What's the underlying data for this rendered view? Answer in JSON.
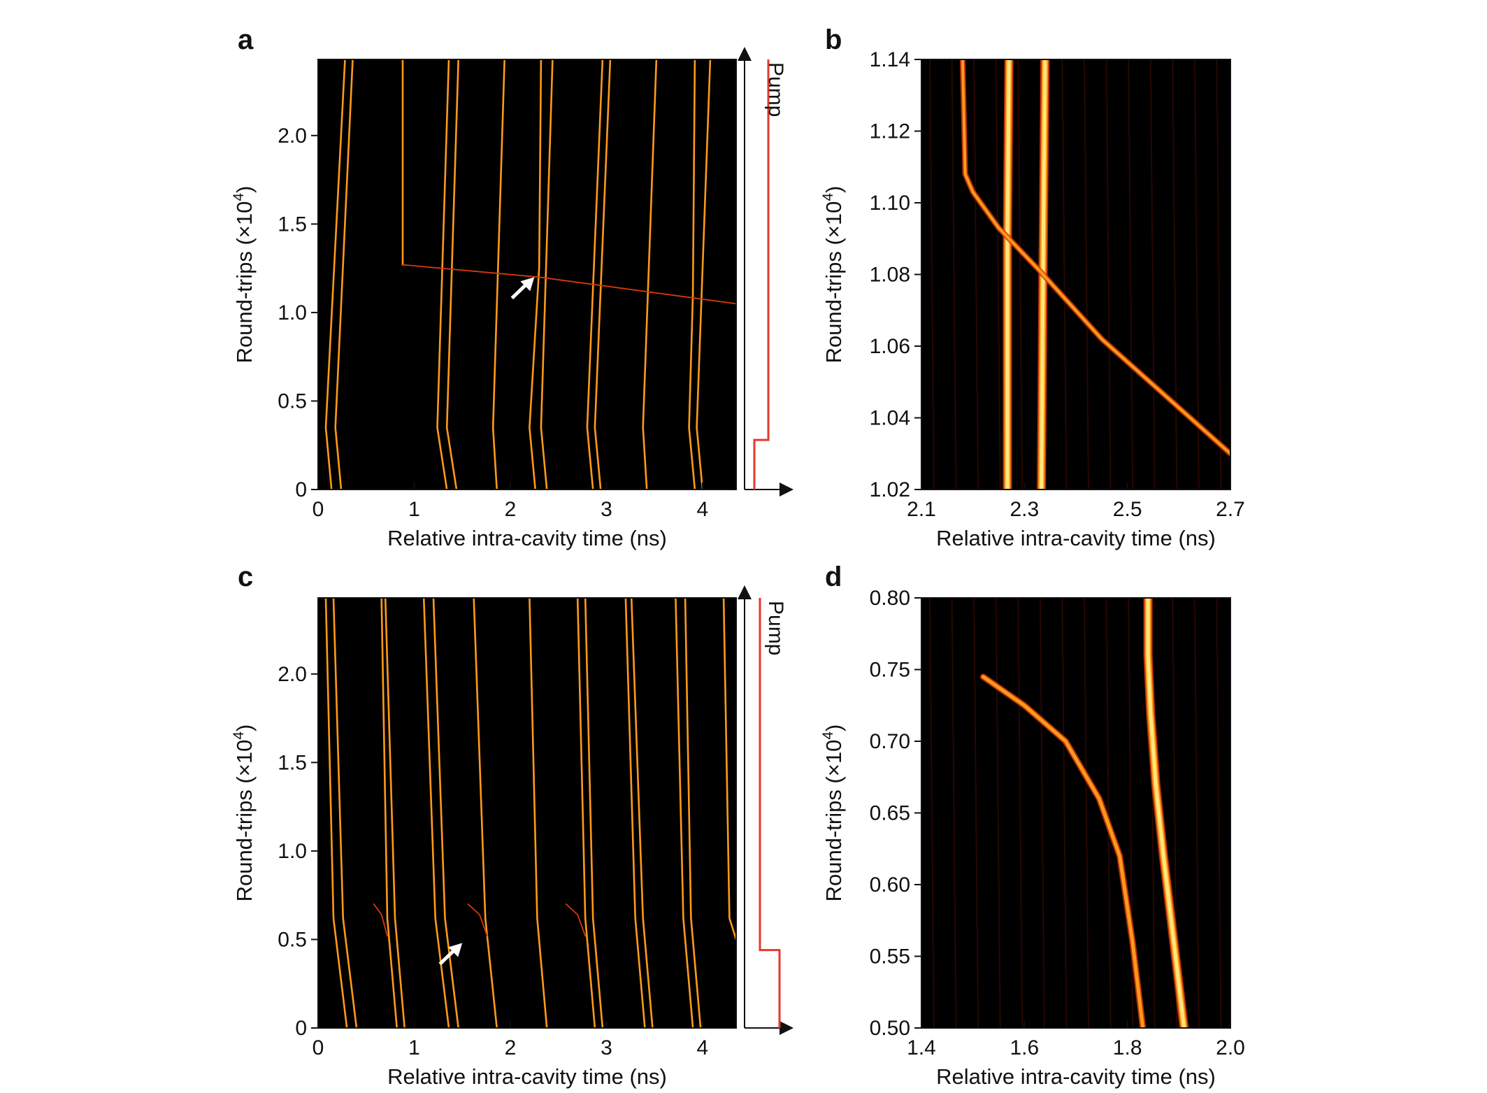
{
  "colors": {
    "background": "#000000",
    "trace_bright": "#ffe77a",
    "trace_mid": "#ff9a1a",
    "trace_dim": "#d43a0a",
    "pump": "#e33a2a",
    "axis": "#111111"
  },
  "chart_data": [
    {
      "id": "a",
      "panel_letter": "a",
      "type": "heatmap",
      "xlabel": "Relative intra-cavity time (ns)",
      "ylabel_main": "Round-trips (×10",
      "ylabel_exp": "4",
      "ylabel_tail": ")",
      "xlim": [
        0,
        4.35
      ],
      "ylim": [
        0,
        2.43
      ],
      "xticks": [
        0,
        1,
        2,
        3,
        4
      ],
      "xtick_labels": [
        "0",
        "1",
        "2",
        "3",
        "4"
      ],
      "yticks": [
        0,
        0.5,
        1.0,
        1.5,
        2.0
      ],
      "ytick_labels": [
        "0",
        "0.5",
        "1.0",
        "1.5",
        "2.0"
      ],
      "pump_label": "Pump",
      "pump_profile": [
        [
          0,
          0.02
        ],
        [
          0.28,
          0.02
        ],
        [
          0.28,
          0.12
        ],
        [
          2.43,
          0.12
        ]
      ],
      "annotation": {
        "type": "arrow",
        "x": 2.25,
        "y": 1.2,
        "direction": "up-right"
      },
      "traces": [
        {
          "points": [
            [
              0.14,
              0
            ],
            [
              0.08,
              0.35
            ],
            [
              0.28,
              2.43
            ]
          ],
          "intensity": "mid"
        },
        {
          "points": [
            [
              0.24,
              0
            ],
            [
              0.18,
              0.35
            ],
            [
              0.36,
              2.43
            ]
          ],
          "intensity": "mid"
        },
        {
          "points": [
            [
              0.88,
              1.27
            ],
            [
              0.88,
              2.43
            ]
          ],
          "intensity": "mid"
        },
        {
          "points": [
            [
              1.34,
              0
            ],
            [
              1.24,
              0.35
            ],
            [
              1.36,
              2.43
            ]
          ],
          "intensity": "mid"
        },
        {
          "points": [
            [
              1.44,
              0
            ],
            [
              1.34,
              0.35
            ],
            [
              1.46,
              2.43
            ]
          ],
          "intensity": "mid"
        },
        {
          "points": [
            [
              1.86,
              0
            ],
            [
              1.82,
              0.35
            ],
            [
              1.94,
              2.43
            ]
          ],
          "intensity": "mid"
        },
        {
          "points": [
            [
              2.26,
              0
            ],
            [
              2.2,
              0.35
            ],
            [
              2.3,
              1.25
            ],
            [
              2.32,
              2.43
            ]
          ],
          "intensity": "mid"
        },
        {
          "points": [
            [
              2.38,
              0
            ],
            [
              2.32,
              0.35
            ],
            [
              2.44,
              2.43
            ]
          ],
          "intensity": "mid"
        },
        {
          "points": [
            [
              2.86,
              0
            ],
            [
              2.8,
              0.35
            ],
            [
              2.96,
              2.43
            ]
          ],
          "intensity": "mid"
        },
        {
          "points": [
            [
              2.94,
              0
            ],
            [
              2.88,
              0.35
            ],
            [
              3.04,
              2.43
            ]
          ],
          "intensity": "mid"
        },
        {
          "points": [
            [
              3.42,
              0
            ],
            [
              3.38,
              0.35
            ],
            [
              3.52,
              2.43
            ]
          ],
          "intensity": "mid"
        },
        {
          "points": [
            [
              3.92,
              0
            ],
            [
              3.86,
              0.35
            ],
            [
              3.9,
              1.1
            ],
            [
              3.92,
              2.43
            ]
          ],
          "intensity": "mid"
        },
        {
          "points": [
            [
              4.0,
              0
            ],
            [
              3.94,
              0.35
            ],
            [
              4.08,
              2.43
            ]
          ],
          "intensity": "mid"
        },
        {
          "points": [
            [
              0.88,
              1.27
            ],
            [
              2.3,
              1.2
            ],
            [
              4.35,
              1.05
            ]
          ],
          "intensity": "dim"
        }
      ]
    },
    {
      "id": "b",
      "panel_letter": "b",
      "type": "heatmap",
      "xlabel": "Relative intra-cavity time (ns)",
      "ylabel_main": "Round-trips (×10",
      "ylabel_exp": "4",
      "ylabel_tail": ")",
      "xlim": [
        2.1,
        2.7
      ],
      "ylim": [
        1.02,
        1.14
      ],
      "xticks": [
        2.1,
        2.3,
        2.5,
        2.7
      ],
      "xtick_labels": [
        "2.1",
        "2.3",
        "2.5",
        "2.7"
      ],
      "yticks": [
        1.02,
        1.04,
        1.06,
        1.08,
        1.1,
        1.12,
        1.14
      ],
      "ytick_labels": [
        "1.02",
        "1.04",
        "1.06",
        "1.08",
        "1.10",
        "1.12",
        "1.14"
      ],
      "traces": [
        {
          "points": [
            [
              2.267,
              1.02
            ],
            [
              2.267,
              1.09
            ],
            [
              2.27,
              1.14
            ]
          ],
          "intensity": "bright",
          "width": 7
        },
        {
          "points": [
            [
              2.333,
              1.02
            ],
            [
              2.336,
              1.08
            ],
            [
              2.34,
              1.14
            ]
          ],
          "intensity": "bright",
          "width": 7
        },
        {
          "points": [
            [
              2.7,
              1.03
            ],
            [
              2.45,
              1.062
            ],
            [
              2.33,
              1.081
            ],
            [
              2.25,
              1.093
            ],
            [
              2.2,
              1.103
            ],
            [
              2.185,
              1.108
            ],
            [
              2.18,
              1.14
            ]
          ],
          "intensity": "mixed",
          "width": 5
        }
      ]
    },
    {
      "id": "c",
      "panel_letter": "c",
      "type": "heatmap",
      "xlabel": "Relative intra-cavity time (ns)",
      "ylabel_main": "Round-trips (×10",
      "ylabel_exp": "4",
      "ylabel_tail": ")",
      "xlim": [
        0,
        4.35
      ],
      "ylim": [
        0,
        2.43
      ],
      "xticks": [
        0,
        1,
        2,
        3,
        4
      ],
      "xtick_labels": [
        "0",
        "1",
        "2",
        "3",
        "4"
      ],
      "yticks": [
        0,
        0.5,
        1.0,
        1.5,
        2.0
      ],
      "ytick_labels": [
        "0",
        "0.5",
        "1.0",
        "1.5",
        "2.0"
      ],
      "pump_label": "Pump",
      "pump_profile": [
        [
          0,
          0.2
        ],
        [
          0.44,
          0.2
        ],
        [
          0.44,
          0.06
        ],
        [
          2.43,
          0.06
        ]
      ],
      "annotation": {
        "type": "arrow",
        "x": 1.5,
        "y": 0.48,
        "direction": "up-right"
      },
      "traces": [
        {
          "points": [
            [
              0.3,
              0
            ],
            [
              0.16,
              0.62
            ],
            [
              0.08,
              2.43
            ]
          ],
          "intensity": "mid"
        },
        {
          "points": [
            [
              0.4,
              0
            ],
            [
              0.26,
              0.62
            ],
            [
              0.16,
              2.43
            ]
          ],
          "intensity": "mid"
        },
        {
          "points": [
            [
              0.82,
              0
            ],
            [
              0.72,
              0.62
            ],
            [
              0.66,
              2.43
            ]
          ],
          "intensity": "mid"
        },
        {
          "points": [
            [
              0.9,
              0
            ],
            [
              0.8,
              0.62
            ],
            [
              0.7,
              2.43
            ]
          ],
          "intensity": "mid"
        },
        {
          "points": [
            [
              1.36,
              0
            ],
            [
              1.22,
              0.62
            ],
            [
              1.1,
              2.43
            ]
          ],
          "intensity": "mid"
        },
        {
          "points": [
            [
              1.46,
              0
            ],
            [
              1.32,
              0.62
            ],
            [
              1.2,
              2.43
            ]
          ],
          "intensity": "mid"
        },
        {
          "points": [
            [
              1.86,
              0
            ],
            [
              1.74,
              0.62
            ],
            [
              1.62,
              2.43
            ]
          ],
          "intensity": "mid"
        },
        {
          "points": [
            [
              2.38,
              0
            ],
            [
              2.28,
              0.62
            ],
            [
              2.2,
              2.43
            ]
          ],
          "intensity": "mid"
        },
        {
          "points": [
            [
              2.88,
              0
            ],
            [
              2.78,
              0.62
            ],
            [
              2.7,
              2.43
            ]
          ],
          "intensity": "mid"
        },
        {
          "points": [
            [
              2.96,
              0
            ],
            [
              2.86,
              0.62
            ],
            [
              2.78,
              2.43
            ]
          ],
          "intensity": "mid"
        },
        {
          "points": [
            [
              3.4,
              0
            ],
            [
              3.3,
              0.62
            ],
            [
              3.2,
              2.43
            ]
          ],
          "intensity": "mid"
        },
        {
          "points": [
            [
              3.48,
              0
            ],
            [
              3.38,
              0.62
            ],
            [
              3.26,
              2.43
            ]
          ],
          "intensity": "mid"
        },
        {
          "points": [
            [
              3.9,
              0
            ],
            [
              3.8,
              0.62
            ],
            [
              3.72,
              2.43
            ]
          ],
          "intensity": "mid"
        },
        {
          "points": [
            [
              3.98,
              0
            ],
            [
              3.88,
              0.62
            ],
            [
              3.82,
              2.43
            ]
          ],
          "intensity": "mid"
        },
        {
          "points": [
            [
              4.35,
              0.5
            ],
            [
              4.28,
              0.62
            ],
            [
              4.22,
              2.43
            ]
          ],
          "intensity": "mid"
        },
        {
          "points": [
            [
              0.72,
              0.52
            ],
            [
              0.66,
              0.64
            ],
            [
              0.58,
              0.7
            ]
          ],
          "intensity": "dim"
        },
        {
          "points": [
            [
              1.76,
              0.52
            ],
            [
              1.68,
              0.64
            ],
            [
              1.56,
              0.7
            ]
          ],
          "intensity": "dim"
        },
        {
          "points": [
            [
              2.78,
              0.52
            ],
            [
              2.7,
              0.64
            ],
            [
              2.58,
              0.7
            ]
          ],
          "intensity": "dim"
        }
      ]
    },
    {
      "id": "d",
      "panel_letter": "d",
      "type": "heatmap",
      "xlabel": "Relative intra-cavity time (ns)",
      "ylabel_main": "Round-trips (×10",
      "ylabel_exp": "4",
      "ylabel_tail": ")",
      "xlim": [
        1.4,
        2.0
      ],
      "ylim": [
        0.5,
        0.8
      ],
      "xticks": [
        1.4,
        1.6,
        1.8,
        2.0
      ],
      "xtick_labels": [
        "1.4",
        "1.6",
        "1.8",
        "2.0"
      ],
      "yticks": [
        0.5,
        0.55,
        0.6,
        0.65,
        0.7,
        0.75,
        0.8
      ],
      "ytick_labels": [
        "0.50",
        "0.55",
        "0.60",
        "0.65",
        "0.70",
        "0.75",
        "0.80"
      ],
      "traces": [
        {
          "points": [
            [
              1.91,
              0.5
            ],
            [
              1.89,
              0.56
            ],
            [
              1.87,
              0.62
            ],
            [
              1.855,
              0.67
            ],
            [
              1.845,
              0.72
            ],
            [
              1.84,
              0.76
            ],
            [
              1.84,
              0.8
            ]
          ],
          "intensity": "bright",
          "width": 7
        },
        {
          "points": [
            [
              1.83,
              0.5
            ],
            [
              1.81,
              0.56
            ],
            [
              1.785,
              0.62
            ],
            [
              1.745,
              0.66
            ],
            [
              1.68,
              0.7
            ],
            [
              1.6,
              0.725
            ],
            [
              1.52,
              0.745
            ]
          ],
          "intensity": "mixed",
          "width": 6
        }
      ]
    }
  ]
}
